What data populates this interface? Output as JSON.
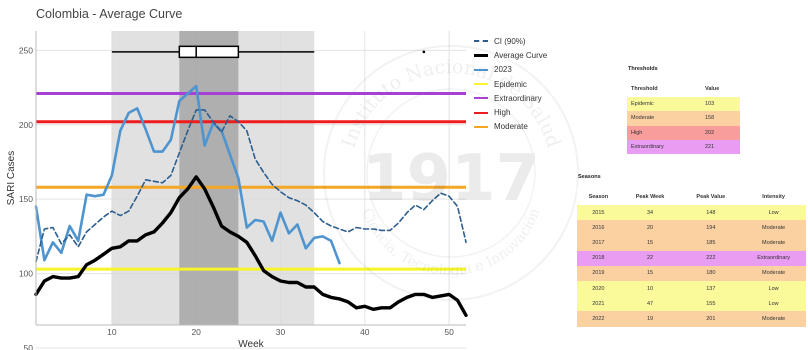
{
  "chart_data": {
    "type": "line",
    "title": "Colombia - Average Curve",
    "xlabel": "Week",
    "ylabel": "SARI Cases",
    "xlim": [
      1,
      52
    ],
    "ylim": [
      48,
      263
    ],
    "xticks": [
      10,
      20,
      30,
      40,
      50
    ],
    "yticks": [
      50,
      100,
      150,
      200,
      250
    ],
    "grid": "on",
    "legend_position": "right",
    "legend": [
      {
        "key": "ci",
        "label": "CI (90%)",
        "color": "#2c5d8f",
        "style": "dashed"
      },
      {
        "key": "avg",
        "label": "Average Curve",
        "color": "#000000",
        "style": "solid"
      },
      {
        "key": "s2023",
        "label": "2023",
        "color": "#4e94cf",
        "style": "solid"
      },
      {
        "key": "epidemic",
        "label": "Epidemic",
        "color": "#f5f527",
        "style": "solid"
      },
      {
        "key": "extraordinary",
        "label": "Extraordinary",
        "color": "#a83fd6",
        "style": "solid"
      },
      {
        "key": "high",
        "label": "High",
        "color": "#ee1c1c",
        "style": "solid"
      },
      {
        "key": "moderate",
        "label": "Moderate",
        "color": "#f5a623",
        "style": "solid"
      }
    ],
    "thresholds": {
      "epidemic": 103,
      "moderate": 158,
      "high": 202,
      "extraordinary": 221
    },
    "season_band_weeks": [
      10,
      34
    ],
    "peak_band_weeks": [
      18,
      25
    ],
    "boxplot": {
      "y": 249,
      "min": 10,
      "q1": 18,
      "median": 20,
      "q3": 25,
      "max": 34,
      "outlier": 47
    },
    "series": [
      {
        "name": "Average Curve",
        "x": [
          1,
          2,
          3,
          4,
          5,
          6,
          7,
          8,
          9,
          10,
          11,
          12,
          13,
          14,
          15,
          16,
          17,
          18,
          19,
          20,
          21,
          22,
          23,
          24,
          25,
          26,
          27,
          28,
          29,
          30,
          31,
          32,
          33,
          34,
          35,
          36,
          37,
          38,
          39,
          40,
          41,
          42,
          43,
          44,
          45,
          46,
          47,
          48,
          49,
          50,
          51,
          52
        ],
        "y": [
          86,
          95,
          98,
          97,
          97,
          98,
          106,
          109,
          113,
          117,
          118,
          122,
          122,
          126,
          128,
          134,
          141,
          151,
          157,
          165,
          157,
          145,
          132,
          128,
          125,
          121,
          112,
          102,
          98,
          95,
          94,
          94,
          91,
          91,
          86,
          84,
          83,
          81,
          77,
          78,
          76,
          77,
          77,
          81,
          84,
          86,
          86,
          84,
          85,
          86,
          82,
          72
        ]
      },
      {
        "name": "2023",
        "x": [
          1,
          2,
          3,
          4,
          5,
          6,
          7,
          8,
          9,
          10,
          11,
          12,
          13,
          14,
          15,
          16,
          17,
          18,
          19,
          20,
          21,
          22,
          23,
          24,
          25,
          26,
          27,
          28,
          29,
          30,
          31,
          32,
          33,
          34,
          35,
          36,
          37
        ],
        "y": [
          145,
          109,
          121,
          114,
          132,
          122,
          153,
          152,
          153,
          166,
          196,
          208,
          211,
          197,
          182,
          182,
          190,
          216,
          221,
          226,
          186,
          201,
          196,
          180,
          164,
          131,
          136,
          135,
          122,
          141,
          127,
          133,
          117,
          124,
          125,
          122,
          107
        ]
      },
      {
        "name": "CI (90%)",
        "x": [
          1,
          2,
          3,
          4,
          5,
          6,
          7,
          8,
          9,
          10,
          11,
          12,
          13,
          14,
          15,
          16,
          17,
          18,
          19,
          20,
          21,
          22,
          23,
          24,
          25,
          26,
          27,
          28,
          29,
          30,
          31,
          32,
          33,
          34,
          35,
          36,
          37,
          38,
          39,
          40,
          41,
          42,
          43,
          44,
          45,
          46,
          47,
          48,
          49,
          50,
          51,
          52
        ],
        "y": [
          108,
          130,
          131,
          120,
          126,
          118,
          128,
          133,
          138,
          142,
          139,
          142,
          152,
          163,
          162,
          161,
          166,
          181,
          196,
          210,
          210,
          202,
          195,
          206,
          202,
          196,
          177,
          168,
          160,
          155,
          151,
          149,
          146,
          141,
          135,
          132,
          130,
          128,
          131,
          130,
          130,
          129,
          129,
          134,
          141,
          146,
          143,
          149,
          154,
          152,
          145,
          121
        ]
      }
    ]
  },
  "thresholds_table": {
    "caption": "Thresholds",
    "columns": [
      "Threshold",
      "Value"
    ],
    "rows": [
      {
        "label": "Epidemic",
        "value": "103",
        "color": "#fafa9b"
      },
      {
        "label": "Moderate",
        "value": "158",
        "color": "#fbd1a2"
      },
      {
        "label": "High",
        "value": "202",
        "color": "#f89c9c"
      },
      {
        "label": "Extraordinary",
        "value": "221",
        "color": "#e89cf2"
      }
    ]
  },
  "seasons_table": {
    "caption": "Seasons",
    "columns": [
      "Season",
      "Peak Week",
      "Peak Value",
      "Intensity"
    ],
    "rows": [
      {
        "season": "2015",
        "week": "34",
        "value": "148",
        "intensity": "Low",
        "color": "#fafa9b"
      },
      {
        "season": "2016",
        "week": "20",
        "value": "194",
        "intensity": "Moderate",
        "color": "#fbd1a2"
      },
      {
        "season": "2017",
        "week": "15",
        "value": "185",
        "intensity": "Moderate",
        "color": "#fbd1a2"
      },
      {
        "season": "2018",
        "week": "22",
        "value": "222",
        "intensity": "Extraordinary",
        "color": "#e89cf2"
      },
      {
        "season": "2019",
        "week": "15",
        "value": "180",
        "intensity": "Moderate",
        "color": "#fbd1a2"
      },
      {
        "season": "2020",
        "week": "10",
        "value": "137",
        "intensity": "Low",
        "color": "#fafa9b"
      },
      {
        "season": "2021",
        "week": "47",
        "value": "155",
        "intensity": "Low",
        "color": "#fafa9b"
      },
      {
        "season": "2022",
        "week": "19",
        "value": "201",
        "intensity": "Moderate",
        "color": "#fbd1a2"
      }
    ]
  },
  "watermark": {
    "top_text": "Instituto Nacional de Salud",
    "bottom_text": "Ciencia, Tecnología e Innovación",
    "year": "1917"
  }
}
